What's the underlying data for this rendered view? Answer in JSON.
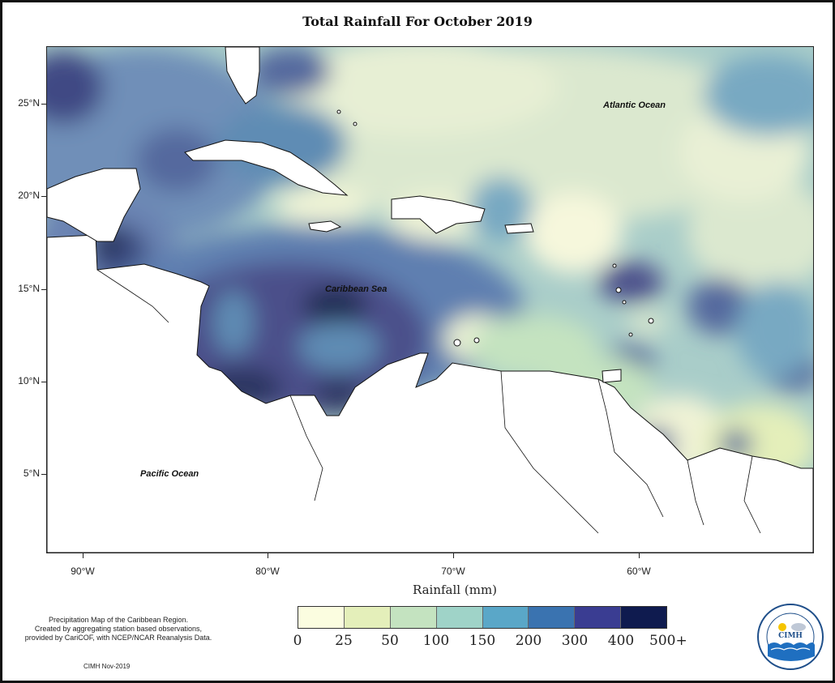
{
  "title": "Total Rainfall For October 2019",
  "ocean_labels": [
    {
      "id": "atlantic",
      "text": "Atlantic Ocean"
    },
    {
      "id": "caribbean",
      "text": "Caribbean Sea"
    },
    {
      "id": "pacific",
      "text": "Pacific Ocean"
    }
  ],
  "axes": {
    "lat_labels": [
      "25°N",
      "20°N",
      "15°N",
      "10°N",
      "5°N"
    ],
    "lon_labels": [
      "90°W",
      "80°W",
      "70°W",
      "60°W"
    ],
    "xlabel": "Rainfall (mm)"
  },
  "legend": {
    "tick_labels": [
      "0",
      "25",
      "50",
      "100",
      "150",
      "200",
      "300",
      "400",
      "500+"
    ],
    "colors": [
      "#fbfde0",
      "#e4efba",
      "#c4e3c0",
      "#9fd3c8",
      "#5aa7c8",
      "#3a73b0",
      "#3a3d92",
      "#0f1b4f"
    ]
  },
  "credit": {
    "lines": [
      "Precipitation Map of the Caribbean Region.",
      "Created by aggregating station based observations,",
      "provided by CariCOF, with NCEP/NCAR Reanalysis Data."
    ],
    "date": "CIMH Nov-2019"
  },
  "logo": {
    "text": "CIMH",
    "icon": "cimh-logo-icon"
  },
  "palette": {
    "very_light": "#f6f7dc",
    "light": "#dbe8cf",
    "light_teal": "#a9cdc9",
    "teal": "#78a9c2",
    "mid_blue": "#5f8cb4",
    "steel": "#55699e",
    "purple": "#4b4f8a",
    "dark": "#242f55"
  }
}
